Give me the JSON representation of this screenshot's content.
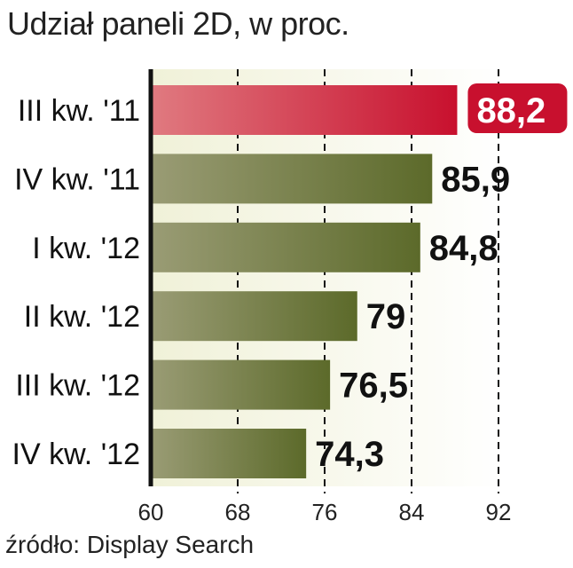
{
  "chart_data": {
    "type": "bar",
    "orientation": "horizontal",
    "title": "Udział paneli 2D, w proc.",
    "source": "źródło: Display Search",
    "categories": [
      "III kw. '11",
      "IV kw. '11",
      "I kw. '12",
      "II kw. '12",
      "III kw. '12",
      "IV kw. '12"
    ],
    "values": [
      88.2,
      85.9,
      84.8,
      79,
      76.5,
      74.3
    ],
    "value_labels": [
      "88,2",
      "85,9",
      "84,8",
      "79",
      "76,5",
      "74,3"
    ],
    "highlight_index": 0,
    "xlim": [
      60,
      92
    ],
    "xticks": [
      60,
      68,
      76,
      84,
      92
    ],
    "tick_labels": [
      "60",
      "68",
      "76",
      "84",
      "92"
    ],
    "grid": "dashed vertical at 68, 76, 84, 92",
    "colors": {
      "bar": "#5c6a2a",
      "bar_light": "#9a9c75",
      "highlight": "#c8102e",
      "highlight_light": "#e07a80",
      "background_band": "#f0f1d8",
      "axis": "#111111"
    }
  }
}
